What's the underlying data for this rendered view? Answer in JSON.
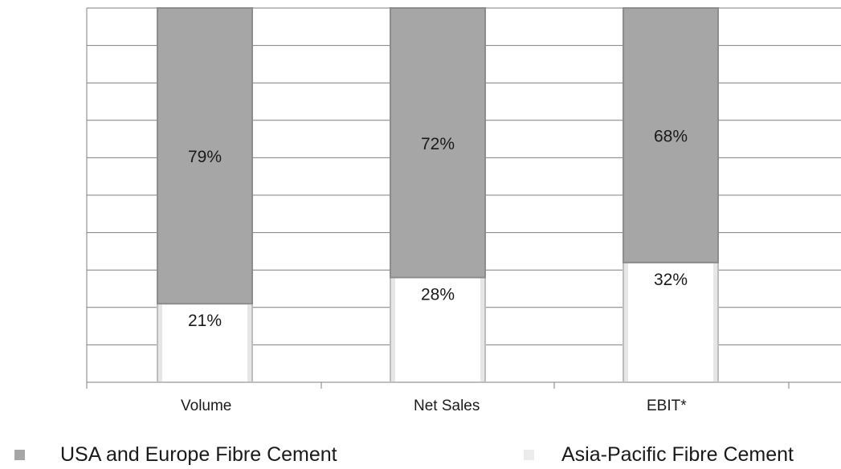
{
  "chart_data": {
    "type": "bar",
    "stacked": true,
    "percent": true,
    "categories": [
      "Volume",
      "Net Sales",
      "EBIT*"
    ],
    "series": [
      {
        "name": "Asia-Pacific Fibre Cement",
        "values": [
          21,
          28,
          32
        ],
        "labels": [
          "21%",
          "28%",
          "32%"
        ],
        "color": "#ffffff"
      },
      {
        "name": "USA  and Europe Fibre Cement",
        "values": [
          79,
          72,
          68
        ],
        "labels": [
          "79%",
          "72%",
          "68%"
        ],
        "color": "#a6a6a6"
      }
    ],
    "ylim": [
      0,
      100
    ],
    "grid": true,
    "legend": "bottom",
    "gridline_color": "#7f7f7f",
    "bar_edge_color": "#8c8c8c"
  },
  "legend": {
    "usa_label": "USA  and Europe Fibre Cement",
    "ap_label": "Asia-Pacific Fibre Cement",
    "usa_color": "#a6a6a6",
    "ap_color": "#ececec"
  }
}
